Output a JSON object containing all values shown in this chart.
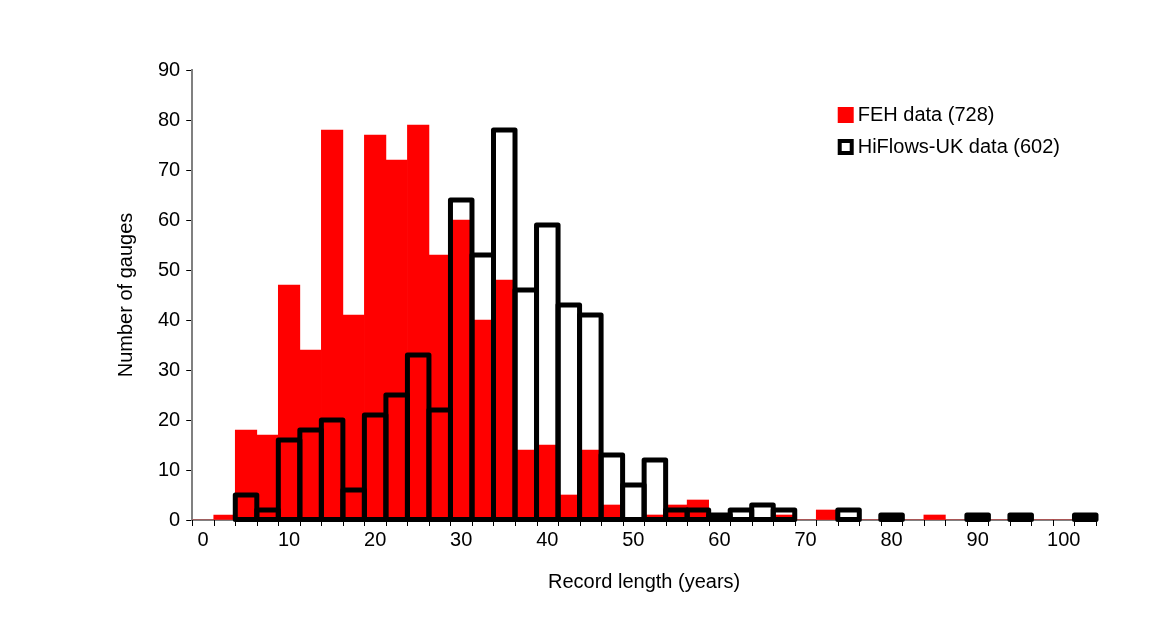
{
  "chart_data": {
    "type": "histogram",
    "xlabel": "Record length (years)",
    "ylabel": "Number of gauges",
    "bins": [
      -1.25,
      1.25,
      3.75,
      6.25,
      8.75,
      11.25,
      13.75,
      16.25,
      18.75,
      21.25,
      23.75,
      26.25,
      28.75,
      31.25,
      33.75,
      36.25,
      38.75,
      41.25,
      43.75,
      46.25,
      48.75,
      51.25,
      53.75,
      56.25,
      58.75,
      61.25,
      63.75,
      66.25,
      68.75,
      71.25,
      73.75,
      76.25,
      78.75,
      81.25,
      83.75,
      86.25,
      88.75,
      91.25,
      93.75,
      96.25,
      98.75,
      101.25,
      103.75
    ],
    "series": [
      {
        "name": "FEH data (728)",
        "color": "#ff0000",
        "values": [
          0,
          1,
          18,
          17,
          47,
          34,
          78,
          41,
          77,
          72,
          79,
          53,
          60,
          40,
          48,
          14,
          15,
          5,
          14,
          3,
          0,
          1,
          3,
          4,
          0,
          0,
          0,
          1,
          0,
          2,
          0,
          0,
          0,
          0,
          1,
          0,
          0,
          0,
          0,
          0,
          0,
          0
        ]
      },
      {
        "name": "HiFlows-UK data (602)",
        "color": "#000000",
        "values": [
          0,
          0,
          5,
          2,
          16,
          18,
          20,
          6,
          21,
          25,
          33,
          22,
          64,
          53,
          78,
          46,
          59,
          43,
          41,
          13,
          7,
          12,
          2,
          2,
          1,
          2,
          3,
          2,
          0,
          0,
          2,
          0,
          1,
          0,
          0,
          0,
          1,
          0,
          1,
          0,
          0,
          1
        ]
      }
    ],
    "xlim": [
      -1.25,
      103.75
    ],
    "xticks": [
      0,
      10,
      20,
      30,
      40,
      50,
      60,
      70,
      80,
      90,
      100
    ],
    "ylim": [
      0,
      90
    ],
    "yticks": [
      0,
      10,
      20,
      30,
      40,
      50,
      60,
      70,
      80,
      90
    ],
    "grid": false,
    "legend": "top right"
  }
}
